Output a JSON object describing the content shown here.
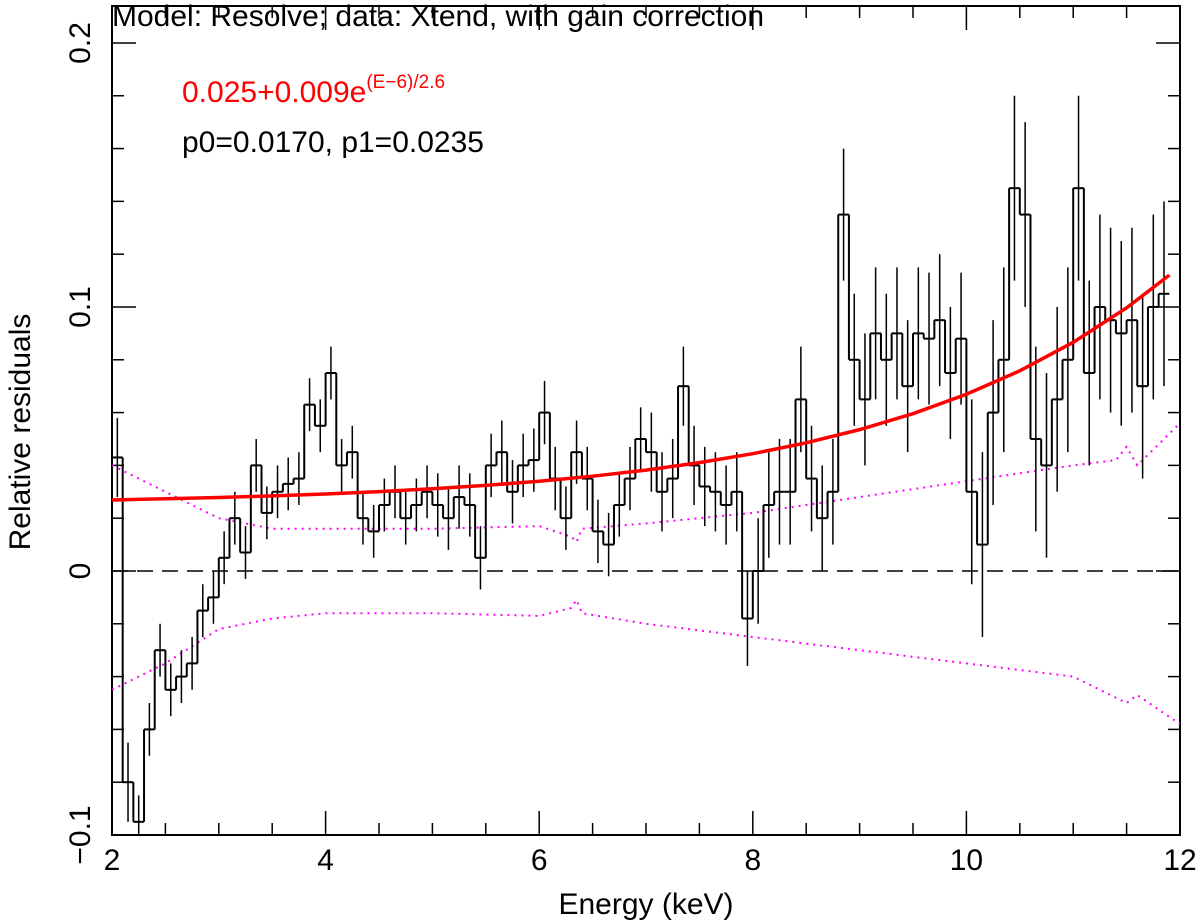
{
  "chart_data": {
    "type": "step",
    "title": "Model: Resolve; data: Xtend, with gain correction",
    "xlabel": "Energy (keV)",
    "ylabel": "Relative residuals",
    "annotations": [
      {
        "text": "0.025+0.009e",
        "superscript": "(E−6)/2.6",
        "color": "#ff0000"
      },
      {
        "text": "p0=0.0170, p1=0.0235",
        "color": "#0000ff"
      }
    ],
    "xlim": [
      2,
      12
    ],
    "ylim": [
      -0.1,
      0.214
    ],
    "xticks": [
      2,
      4,
      6,
      8,
      10,
      12
    ],
    "yticks": [
      {
        "value": -0.1,
        "label": "−0.1"
      },
      0,
      0.1,
      0.2
    ],
    "xminorticks": [
      2.5,
      3,
      3.5,
      4.5,
      5,
      5.5,
      6.5,
      7,
      7.5,
      8.5,
      9,
      9.5,
      10.5,
      11,
      11.5
    ],
    "yminorticks": [
      -0.08,
      -0.06,
      -0.04,
      -0.02,
      0.02,
      0.04,
      0.06,
      0.08,
      0.12,
      0.14,
      0.16,
      0.18
    ],
    "hline": 0,
    "color": "#000000",
    "x": [
      2.05,
      2.15,
      2.25,
      2.35,
      2.45,
      2.55,
      2.65,
      2.75,
      2.85,
      2.95,
      3.05,
      3.15,
      3.25,
      3.35,
      3.45,
      3.55,
      3.65,
      3.75,
      3.85,
      3.95,
      4.05,
      4.15,
      4.25,
      4.35,
      4.45,
      4.55,
      4.65,
      4.75,
      4.85,
      4.95,
      5.05,
      5.15,
      5.25,
      5.35,
      5.45,
      5.55,
      5.65,
      5.75,
      5.85,
      5.95,
      6.05,
      6.15,
      6.25,
      6.35,
      6.45,
      6.55,
      6.65,
      6.75,
      6.85,
      6.95,
      7.05,
      7.15,
      7.25,
      7.35,
      7.45,
      7.55,
      7.65,
      7.75,
      7.85,
      7.95,
      8.05,
      8.15,
      8.25,
      8.35,
      8.45,
      8.55,
      8.65,
      8.75,
      8.85,
      8.95,
      9.05,
      9.15,
      9.25,
      9.35,
      9.45,
      9.55,
      9.65,
      9.75,
      9.85,
      9.95,
      10.05,
      10.15,
      10.25,
      10.35,
      10.45,
      10.55,
      10.65,
      10.75,
      10.85,
      10.95,
      11.05,
      11.15,
      11.25,
      11.35,
      11.45,
      11.55,
      11.65,
      11.75,
      11.85
    ],
    "values": [
      0.043,
      -0.08,
      -0.095,
      -0.06,
      -0.03,
      -0.045,
      -0.04,
      -0.035,
      -0.015,
      -0.01,
      0.005,
      0.02,
      0.007,
      0.04,
      0.022,
      0.03,
      0.033,
      0.035,
      0.063,
      0.055,
      0.075,
      0.04,
      0.045,
      0.02,
      0.015,
      0.025,
      0.03,
      0.02,
      0.025,
      0.03,
      0.025,
      0.02,
      0.028,
      0.025,
      0.005,
      0.04,
      0.045,
      0.03,
      0.04,
      0.042,
      0.06,
      0.035,
      0.02,
      0.045,
      0.035,
      0.015,
      0.01,
      0.025,
      0.035,
      0.05,
      0.045,
      0.03,
      0.035,
      0.07,
      0.04,
      0.032,
      0.03,
      0.025,
      0.03,
      -0.018,
      0.0,
      0.025,
      0.03,
      0.03,
      0.065,
      0.035,
      0.02,
      0.03,
      0.135,
      0.08,
      0.065,
      0.09,
      0.08,
      0.09,
      0.07,
      0.09,
      0.088,
      0.095,
      0.075,
      0.088,
      0.03,
      0.01,
      0.06,
      0.08,
      0.145,
      0.135,
      0.05,
      0.04,
      0.065,
      0.08,
      0.145,
      0.075,
      0.1,
      0.095,
      0.09,
      0.095,
      0.07,
      0.1,
      0.105
    ],
    "errors": [
      0.015,
      0.015,
      0.01,
      0.01,
      0.01,
      0.01,
      0.01,
      0.01,
      0.01,
      0.01,
      0.01,
      0.01,
      0.01,
      0.01,
      0.01,
      0.01,
      0.01,
      0.01,
      0.01,
      0.01,
      0.01,
      0.01,
      0.01,
      0.01,
      0.01,
      0.01,
      0.01,
      0.01,
      0.01,
      0.01,
      0.012,
      0.012,
      0.012,
      0.012,
      0.012,
      0.012,
      0.012,
      0.012,
      0.012,
      0.012,
      0.012,
      0.012,
      0.012,
      0.012,
      0.012,
      0.012,
      0.012,
      0.012,
      0.012,
      0.012,
      0.015,
      0.015,
      0.015,
      0.015,
      0.015,
      0.015,
      0.015,
      0.015,
      0.015,
      0.018,
      0.02,
      0.02,
      0.02,
      0.02,
      0.02,
      0.02,
      0.02,
      0.02,
      0.025,
      0.025,
      0.025,
      0.025,
      0.025,
      0.025,
      0.025,
      0.025,
      0.025,
      0.025,
      0.025,
      0.025,
      0.035,
      0.035,
      0.035,
      0.035,
      0.035,
      0.035,
      0.035,
      0.035,
      0.035,
      0.035,
      0.035,
      0.035,
      0.035,
      0.035,
      0.035,
      0.035,
      0.035,
      0.035,
      0.035
    ],
    "model": {
      "color": "#ff0000",
      "x": [
        2,
        2.5,
        3,
        3.5,
        4,
        4.5,
        5,
        5.5,
        6,
        6.5,
        7,
        7.5,
        8,
        8.5,
        9,
        9.5,
        10,
        10.5,
        11,
        11.5,
        11.9
      ],
      "values": [
        0.0269,
        0.02734,
        0.02784,
        0.02844,
        0.02917,
        0.03005,
        0.03113,
        0.03243,
        0.034,
        0.03591,
        0.03822,
        0.04103,
        0.04442,
        0.04854,
        0.05354,
        0.05959,
        0.06693,
        0.07581,
        0.0866,
        0.09966,
        0.11205
      ]
    },
    "bands": [
      {
        "color": "#ff00ff",
        "x": [
          2,
          2.5,
          3,
          3.5,
          4,
          5,
          6,
          6.3,
          6.35,
          6.4,
          7,
          8,
          9,
          10,
          11,
          11.4,
          11.5,
          11.6,
          12
        ],
        "values": [
          0.04,
          0.03,
          0.02,
          0.016,
          0.016,
          0.016,
          0.017,
          0.013,
          0.011,
          0.016,
          0.018,
          0.022,
          0.028,
          0.034,
          0.04,
          0.042,
          0.047,
          0.04,
          0.056
        ]
      },
      {
        "color": "#ff00ff",
        "x": [
          2,
          2.5,
          3,
          3.5,
          4,
          5,
          6,
          6.3,
          6.35,
          6.4,
          7,
          8,
          9,
          10,
          11,
          11.4,
          11.5,
          11.6,
          12
        ],
        "values": [
          -0.045,
          -0.035,
          -0.022,
          -0.018,
          -0.016,
          -0.016,
          -0.017,
          -0.014,
          -0.011,
          -0.016,
          -0.02,
          -0.025,
          -0.03,
          -0.035,
          -0.04,
          -0.048,
          -0.05,
          -0.047,
          -0.058
        ]
      }
    ]
  }
}
